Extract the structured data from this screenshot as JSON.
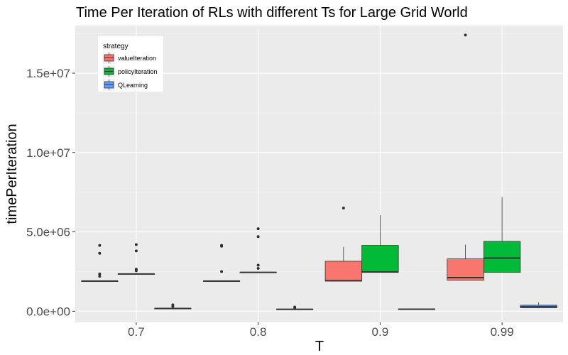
{
  "chart_data": {
    "type": "boxplot",
    "title": "Time Per Iteration of RLs with different Ts for Large Grid World",
    "xlabel": "T",
    "ylabel": "timePerIteration",
    "categories": [
      "0.7",
      "0.8",
      "0.9",
      "0.99"
    ],
    "ylim": [
      -700000,
      18000000
    ],
    "yticks": [
      0,
      5000000,
      10000000,
      15000000
    ],
    "ytick_labels": [
      "0.0e+00",
      "5.0e+06",
      "1.0e+07",
      "1.5e+07"
    ],
    "grid": true,
    "legend": {
      "title": "strategy",
      "position": "top-left",
      "entries": [
        "valueIteration",
        "policyIteration",
        "QLearning"
      ]
    },
    "series": [
      {
        "name": "valueIteration",
        "color": "#F8766D",
        "boxes": [
          {
            "min": 1900000,
            "q1": 1900000,
            "median": 1900000,
            "q3": 1900000,
            "max": 1900000,
            "outliers": [
              2200000,
              2350000,
              3650000,
              4150000
            ]
          },
          {
            "min": 1900000,
            "q1": 1900000,
            "median": 1900000,
            "q3": 1900000,
            "max": 1900000,
            "outliers": [
              2500000,
              4100000,
              4150000
            ]
          },
          {
            "min": 1900000,
            "q1": 1900000,
            "median": 1920000,
            "q3": 3150000,
            "max": 4050000,
            "outliers": [
              6500000
            ]
          },
          {
            "min": 1950000,
            "q1": 1950000,
            "median": 2120000,
            "q3": 3300000,
            "max": 4200000,
            "outliers": [
              17400000
            ]
          }
        ]
      },
      {
        "name": "policyIteration",
        "color": "#00BA38",
        "boxes": [
          {
            "min": 2350000,
            "q1": 2350000,
            "median": 2350000,
            "q3": 2350000,
            "max": 2350000,
            "outliers": [
              2550000,
              2650000,
              3800000,
              4200000
            ]
          },
          {
            "min": 2450000,
            "q1": 2450000,
            "median": 2450000,
            "q3": 2450000,
            "max": 2450000,
            "outliers": [
              2700000,
              2900000,
              4700000,
              5200000
            ]
          },
          {
            "min": 2450000,
            "q1": 2450000,
            "median": 2470000,
            "q3": 4150000,
            "max": 6050000,
            "outliers": []
          },
          {
            "min": 2450000,
            "q1": 2450000,
            "median": 3350000,
            "q3": 4400000,
            "max": 7200000,
            "outliers": []
          }
        ]
      },
      {
        "name": "QLearning",
        "color": "#619CFF",
        "boxes": [
          {
            "min": 170000,
            "q1": 170000,
            "median": 170000,
            "q3": 170000,
            "max": 170000,
            "outliers": [
              300000,
              400000
            ]
          },
          {
            "min": 120000,
            "q1": 120000,
            "median": 120000,
            "q3": 120000,
            "max": 120000,
            "outliers": [
              220000,
              260000
            ]
          },
          {
            "min": 130000,
            "q1": 130000,
            "median": 130000,
            "q3": 130000,
            "max": 130000,
            "outliers": []
          },
          {
            "min": 200000,
            "q1": 220000,
            "median": 280000,
            "q3": 380000,
            "max": 560000,
            "outliers": []
          }
        ]
      }
    ]
  }
}
